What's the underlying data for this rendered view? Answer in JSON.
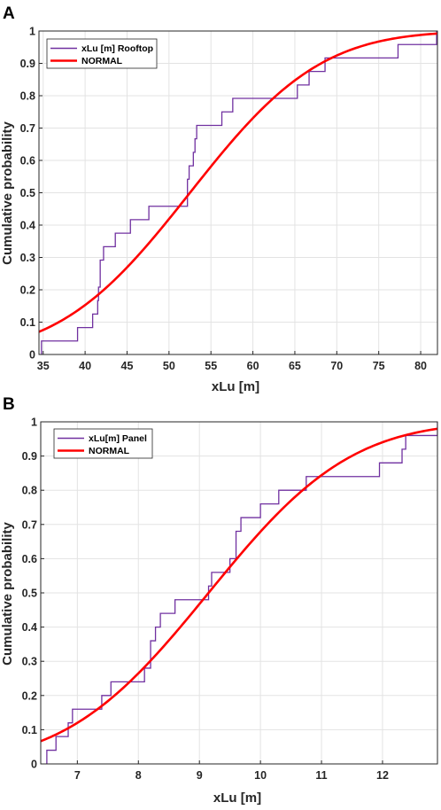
{
  "panels": [
    {
      "letter": "A",
      "chart_data": {
        "type": "line",
        "xlabel": "xLu [m]",
        "ylabel": "Cumulative probability",
        "xlim": [
          34.5,
          82
        ],
        "ylim": [
          0,
          1
        ],
        "xticks": [
          35,
          40,
          45,
          50,
          55,
          60,
          65,
          70,
          75,
          80
        ],
        "yticks": [
          0,
          0.1,
          0.2,
          0.3,
          0.4,
          0.5,
          0.6,
          0.7,
          0.8,
          0.9,
          1
        ],
        "grid": true,
        "legend_position": "top-left",
        "series": [
          {
            "name": "xLu [m] Rooftop",
            "kind": "empirical-cdf",
            "color": "#7030A0",
            "x": [
              34.8,
              39.1,
              40.9,
              41.5,
              41.6,
              41.8,
              42.2,
              43.6,
              45.4,
              47.6,
              52.2,
              52.4,
              52.9,
              53.1,
              53.3,
              53.8,
              56.3,
              57.6,
              65.3,
              66.7,
              68.6,
              77.3,
              81.9
            ],
            "y": [
              0.0417,
              0.0833,
              0.125,
              0.1667,
              0.2083,
              0.2917,
              0.3333,
              0.375,
              0.4167,
              0.4583,
              0.5417,
              0.5833,
              0.625,
              0.6667,
              0.7083,
              0.7083,
              0.75,
              0.7917,
              0.8333,
              0.875,
              0.9167,
              0.9583,
              1.0
            ]
          },
          {
            "name": "NORMAL",
            "kind": "normal-cdf",
            "color": "#FF0000",
            "mean": 52.5,
            "std": 12.2
          }
        ]
      }
    },
    {
      "letter": "B",
      "chart_data": {
        "type": "line",
        "xlabel": "xLu [m]",
        "ylabel": "Cumulative probability",
        "xlim": [
          6.4,
          12.9
        ],
        "ylim": [
          0,
          1
        ],
        "xticks": [
          7,
          8,
          9,
          10,
          11,
          12
        ],
        "yticks": [
          0,
          0.1,
          0.2,
          0.3,
          0.4,
          0.5,
          0.6,
          0.7,
          0.8,
          0.9,
          1
        ],
        "grid": true,
        "legend_position": "top-left",
        "series": [
          {
            "name": "xLu[m] Panel",
            "kind": "empirical-cdf",
            "color": "#7030A0",
            "x": [
              6.5,
              6.65,
              6.85,
              6.92,
              7.4,
              7.55,
              8.1,
              8.2,
              8.28,
              8.36,
              8.6,
              9.15,
              9.2,
              9.5,
              9.6,
              9.68,
              10.0,
              10.3,
              10.75,
              11.95,
              12.32,
              12.38,
              12.9
            ],
            "y": [
              0.04,
              0.08,
              0.12,
              0.16,
              0.2,
              0.24,
              0.28,
              0.36,
              0.4,
              0.44,
              0.48,
              0.52,
              0.56,
              0.6,
              0.68,
              0.72,
              0.76,
              0.8,
              0.84,
              0.88,
              0.92,
              0.96,
              1.0
            ]
          },
          {
            "name": "NORMAL",
            "kind": "normal-cdf",
            "color": "#FF0000",
            "mean": 9.15,
            "std": 1.83
          }
        ]
      }
    }
  ]
}
